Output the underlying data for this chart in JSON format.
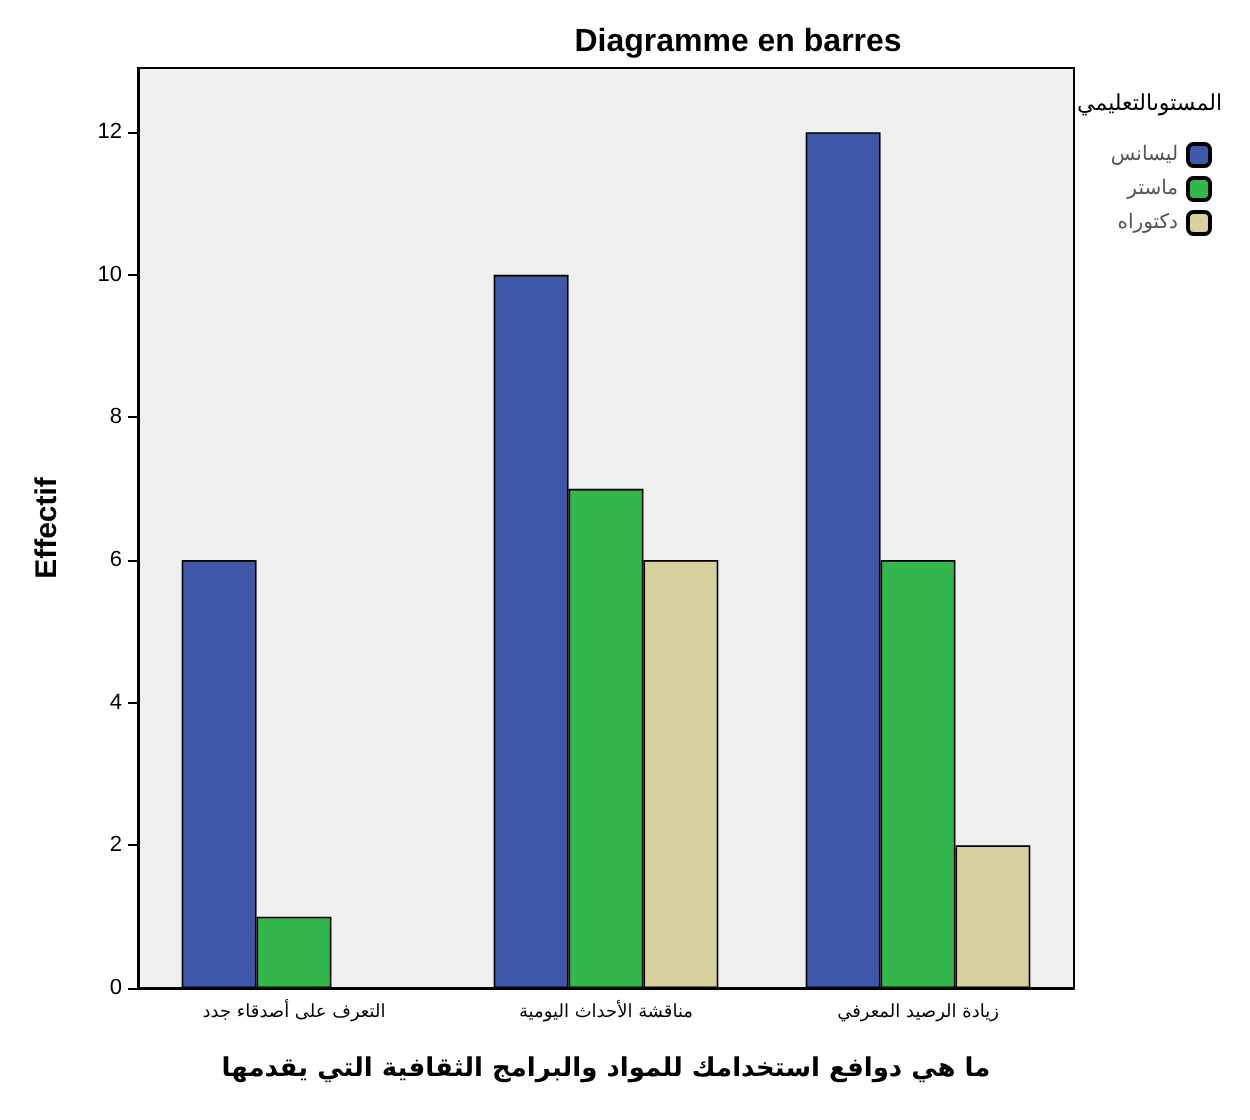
{
  "chart_data": {
    "type": "bar",
    "title": "Diagramme en barres",
    "xlabel": "ما هي دوافع استخدامك للمواد والبرامج الثقافية التي يقدمها",
    "ylabel": "Effectif",
    "legend_title": "المستوىالتعليمي",
    "categories": [
      "التعرف على أصدقاء جدد",
      "مناقشة الأحداث اليومية",
      "زيادة الرصيد المعرفي"
    ],
    "series": [
      {
        "name": "ليسانس",
        "color": "#3d58a8",
        "values": [
          6,
          10,
          12
        ]
      },
      {
        "name": "ماستر",
        "color": "#33b64c",
        "values": [
          1,
          7,
          6
        ]
      },
      {
        "name": "دكتوراه",
        "color": "#d6d09c",
        "values": [
          null,
          6,
          2
        ]
      }
    ],
    "ylim": [
      0,
      12.9
    ],
    "yticks": [
      0,
      2,
      4,
      6,
      8,
      10,
      12
    ],
    "grid": false,
    "legend": "top right"
  }
}
